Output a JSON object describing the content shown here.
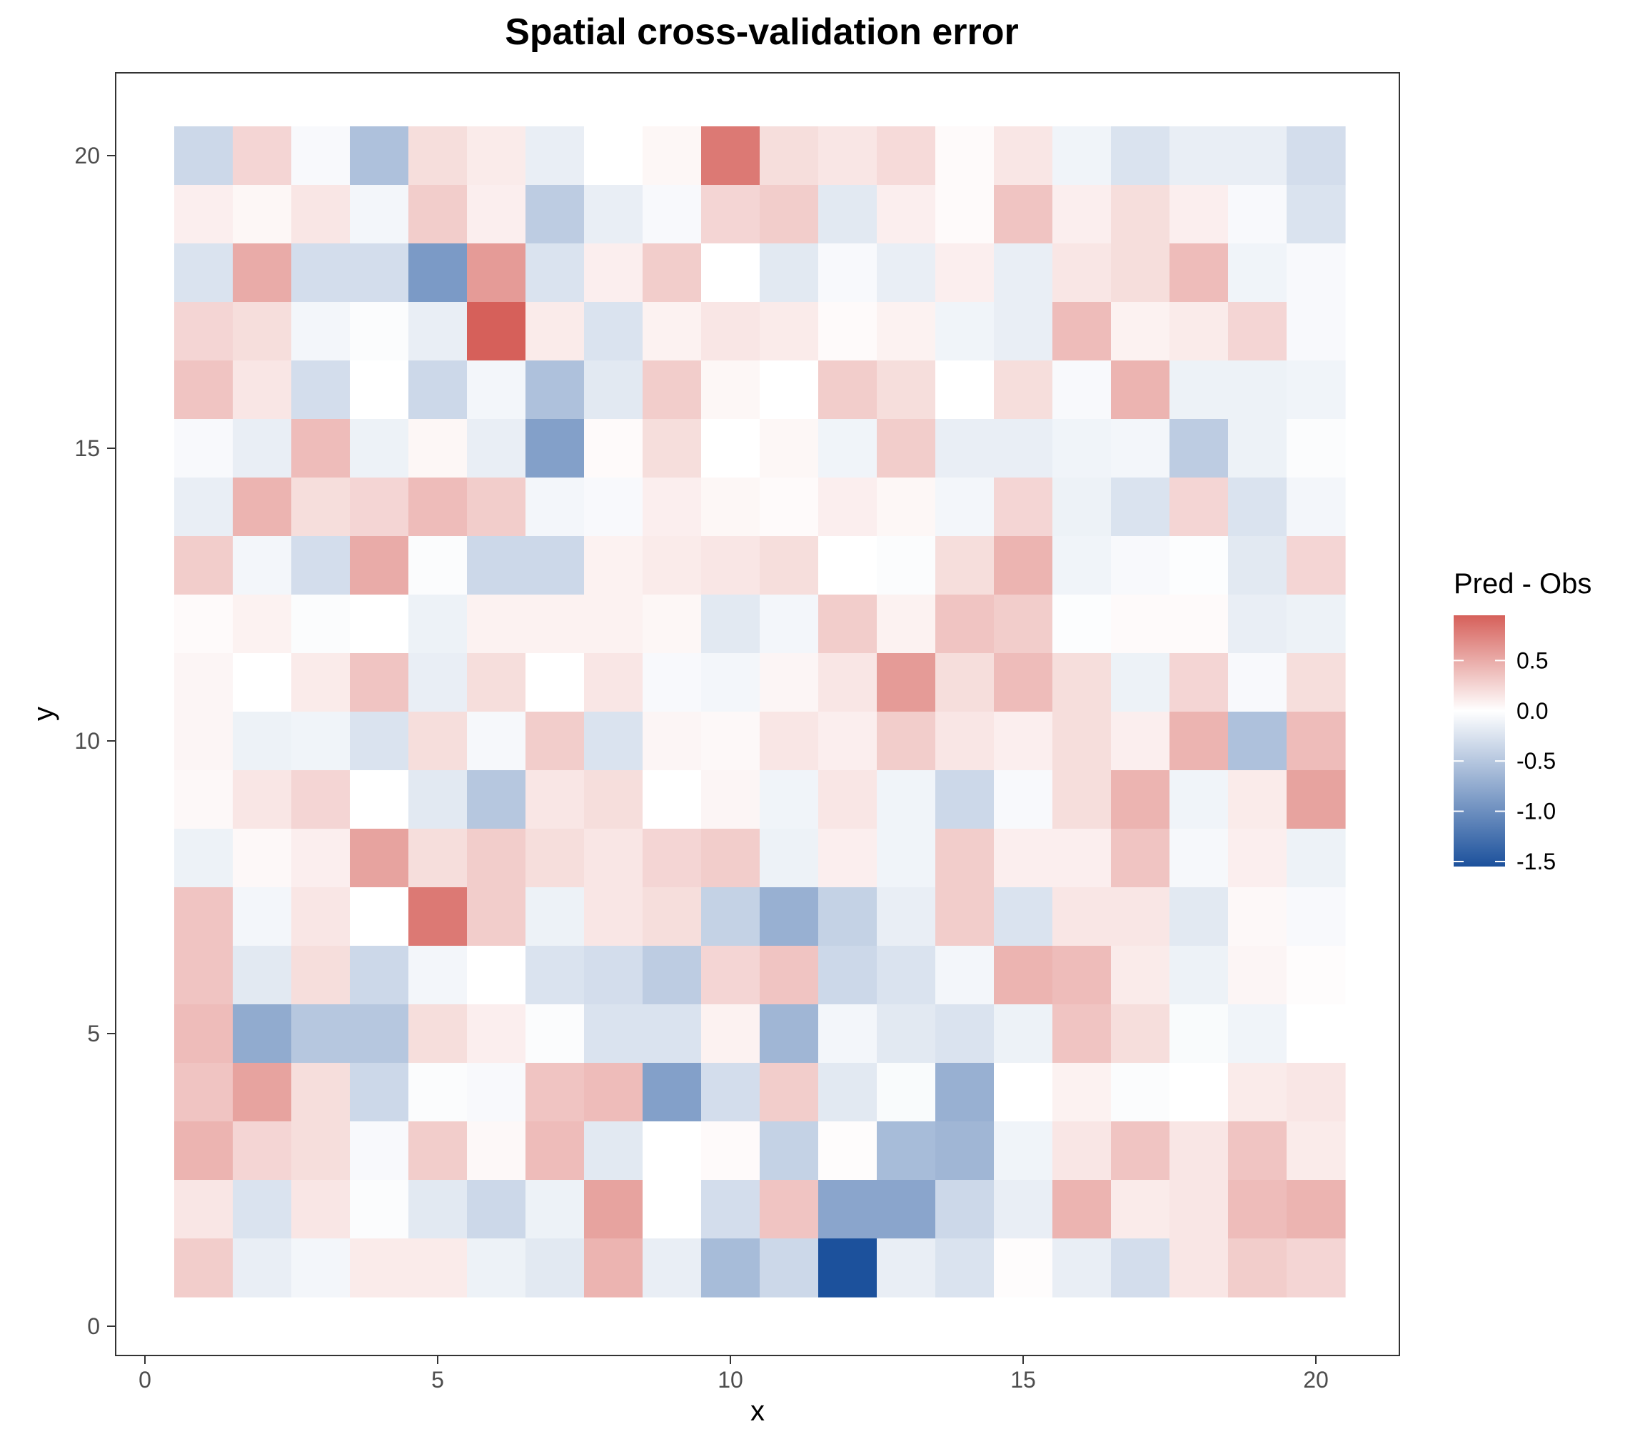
{
  "chart_data": {
    "type": "heatmap",
    "title": "Spatial cross-validation error",
    "xlabel": "x",
    "ylabel": "y",
    "xlim": [
      -1,
      21
    ],
    "ylim": [
      -1,
      21
    ],
    "x_ticks": [
      0,
      5,
      10,
      15,
      20
    ],
    "y_ticks": [
      0,
      5,
      10,
      15,
      20
    ],
    "x_tick_labels": [
      "0",
      "5",
      "10",
      "15",
      "20"
    ],
    "y_tick_labels": [
      "0",
      "5",
      "10",
      "15",
      "20"
    ],
    "x": [
      1,
      2,
      3,
      4,
      5,
      6,
      7,
      8,
      9,
      10,
      11,
      12,
      13,
      14,
      15,
      16,
      17,
      18,
      19,
      20
    ],
    "y": [
      20,
      19,
      18,
      17,
      16,
      15,
      14,
      13,
      12,
      11,
      10,
      9,
      8,
      7,
      6,
      5,
      4,
      3,
      2,
      1
    ],
    "values": [
      [
        -0.35,
        0.25,
        -0.05,
        -0.55,
        0.2,
        0.12,
        -0.15,
        0.0,
        0.05,
        0.8,
        0.2,
        0.15,
        0.22,
        0.03,
        0.15,
        -0.1,
        -0.25,
        -0.15,
        -0.15,
        -0.3
      ],
      [
        0.1,
        0.05,
        0.15,
        -0.08,
        0.3,
        0.1,
        -0.45,
        -0.15,
        -0.05,
        0.25,
        0.3,
        -0.2,
        0.1,
        0.03,
        0.35,
        0.1,
        0.2,
        0.1,
        -0.05,
        -0.25
      ],
      [
        -0.25,
        0.5,
        -0.3,
        -0.3,
        -0.9,
        0.6,
        -0.25,
        0.1,
        0.3,
        0.0,
        -0.2,
        -0.05,
        -0.15,
        0.1,
        -0.15,
        0.15,
        0.2,
        0.4,
        -0.1,
        -0.05
      ],
      [
        0.25,
        0.2,
        -0.08,
        -0.03,
        -0.15,
        0.95,
        0.12,
        -0.25,
        0.08,
        0.15,
        0.12,
        0.03,
        0.08,
        -0.1,
        -0.15,
        0.4,
        0.08,
        0.12,
        0.25,
        -0.05
      ],
      [
        0.35,
        0.15,
        -0.3,
        0.0,
        -0.35,
        -0.08,
        -0.55,
        -0.2,
        0.3,
        0.05,
        0.0,
        0.3,
        0.2,
        0.0,
        0.2,
        -0.05,
        0.45,
        -0.12,
        -0.12,
        -0.1
      ],
      [
        -0.05,
        -0.15,
        0.4,
        -0.12,
        0.05,
        -0.15,
        -0.85,
        0.03,
        0.2,
        0.0,
        0.05,
        -0.1,
        0.3,
        -0.15,
        -0.15,
        -0.1,
        -0.08,
        -0.45,
        -0.12,
        -0.03
      ],
      [
        -0.15,
        0.45,
        0.2,
        0.25,
        0.4,
        0.3,
        -0.08,
        -0.05,
        0.1,
        0.05,
        0.03,
        0.1,
        0.05,
        -0.08,
        0.25,
        -0.12,
        -0.25,
        0.25,
        -0.25,
        -0.08
      ],
      [
        0.3,
        -0.08,
        -0.3,
        0.5,
        -0.03,
        -0.35,
        -0.35,
        0.08,
        0.12,
        0.15,
        0.2,
        0.0,
        -0.03,
        0.2,
        0.45,
        -0.1,
        -0.05,
        -0.02,
        -0.2,
        0.25
      ],
      [
        0.03,
        0.08,
        -0.03,
        0.0,
        -0.12,
        0.08,
        0.08,
        0.08,
        0.05,
        -0.2,
        -0.08,
        0.3,
        0.08,
        0.35,
        0.3,
        -0.02,
        0.03,
        0.03,
        -0.15,
        -0.12
      ],
      [
        0.06,
        0.0,
        0.12,
        0.35,
        -0.15,
        0.2,
        0.0,
        0.15,
        -0.05,
        -0.08,
        0.06,
        0.15,
        0.6,
        0.2,
        0.4,
        0.2,
        -0.12,
        0.25,
        -0.05,
        0.2
      ],
      [
        0.06,
        -0.12,
        -0.1,
        -0.25,
        0.2,
        -0.06,
        0.3,
        -0.25,
        0.06,
        0.04,
        0.15,
        0.1,
        0.3,
        0.15,
        0.1,
        0.2,
        0.1,
        0.45,
        -0.55,
        0.4
      ],
      [
        0.04,
        0.15,
        0.25,
        0.0,
        -0.2,
        -0.5,
        0.15,
        0.2,
        0.0,
        0.06,
        -0.1,
        0.15,
        -0.1,
        -0.35,
        -0.05,
        0.2,
        0.45,
        -0.1,
        0.12,
        0.55
      ],
      [
        -0.12,
        0.04,
        0.1,
        0.55,
        0.2,
        0.3,
        0.2,
        0.15,
        0.25,
        0.3,
        -0.12,
        0.1,
        -0.1,
        0.3,
        0.1,
        0.1,
        0.35,
        -0.06,
        0.1,
        -0.12
      ],
      [
        0.35,
        -0.08,
        0.15,
        0.0,
        0.8,
        0.3,
        -0.12,
        0.15,
        0.2,
        -0.4,
        -0.7,
        -0.4,
        -0.15,
        0.3,
        -0.25,
        0.15,
        0.15,
        -0.2,
        0.04,
        -0.05
      ],
      [
        0.35,
        -0.2,
        0.2,
        -0.35,
        -0.08,
        0.0,
        -0.25,
        -0.3,
        -0.45,
        0.25,
        0.35,
        -0.35,
        -0.25,
        -0.08,
        0.45,
        0.4,
        0.12,
        -0.12,
        0.06,
        0.02
      ],
      [
        0.4,
        -0.75,
        -0.5,
        -0.5,
        0.2,
        0.1,
        -0.03,
        -0.25,
        -0.25,
        0.08,
        -0.65,
        -0.08,
        -0.2,
        -0.25,
        -0.12,
        0.35,
        0.2,
        -0.04,
        -0.1,
        0.0
      ],
      [
        0.35,
        0.55,
        0.2,
        -0.35,
        -0.03,
        -0.05,
        0.35,
        0.4,
        -0.85,
        -0.3,
        0.3,
        -0.2,
        -0.04,
        -0.7,
        0.0,
        0.08,
        -0.03,
        0.0,
        0.12,
        0.15
      ],
      [
        0.45,
        0.25,
        0.2,
        -0.05,
        0.3,
        0.04,
        0.4,
        -0.2,
        0.0,
        0.03,
        -0.4,
        0.02,
        -0.6,
        -0.65,
        -0.1,
        0.15,
        0.35,
        0.15,
        0.35,
        0.12
      ],
      [
        0.15,
        -0.25,
        0.15,
        -0.03,
        -0.2,
        -0.35,
        -0.12,
        0.55,
        0.0,
        -0.3,
        0.35,
        -0.8,
        -0.8,
        -0.35,
        -0.15,
        0.45,
        0.12,
        0.15,
        0.4,
        0.45
      ],
      [
        0.3,
        -0.15,
        -0.08,
        0.12,
        0.12,
        -0.12,
        -0.2,
        0.45,
        -0.15,
        -0.6,
        -0.35,
        -1.55,
        -0.15,
        -0.25,
        0.02,
        -0.15,
        -0.3,
        0.15,
        0.3,
        0.25
      ]
    ],
    "grid": false,
    "legend": {
      "title": "Pred - Obs",
      "placement": "right",
      "breaks": [
        0.5,
        0.0,
        -0.5,
        -1.0,
        -1.5
      ],
      "labels": [
        "0.5",
        "0.0",
        "-0.5",
        "-1.0",
        "-1.5"
      ],
      "min": -1.55,
      "max": 0.95
    },
    "colors": {
      "low": "#1c519c",
      "mid": "#ffffff",
      "high": "#d6605a"
    }
  }
}
